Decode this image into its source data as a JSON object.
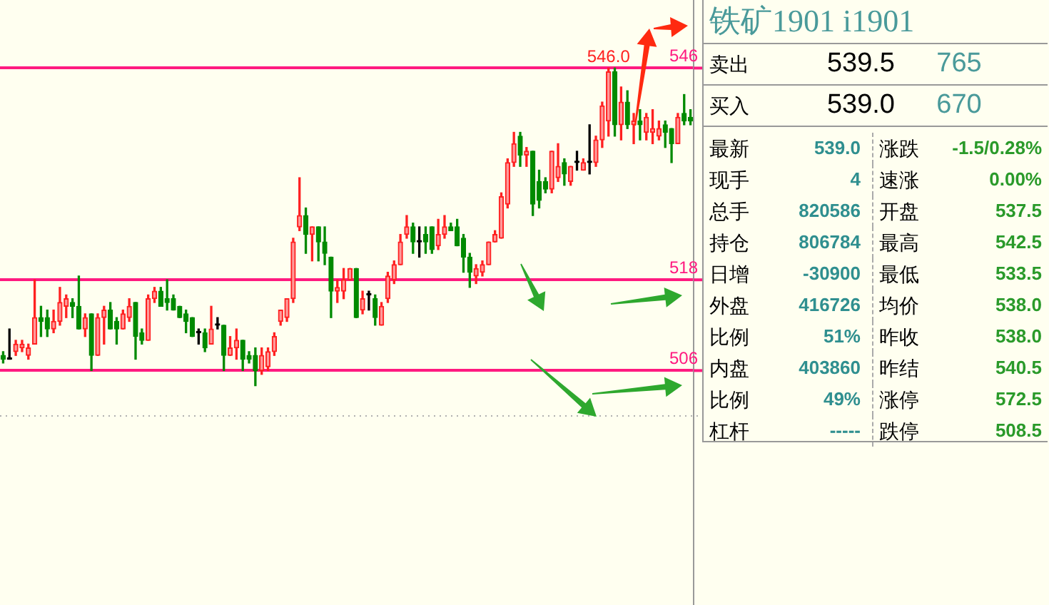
{
  "chart_data": [
    {
      "type": "candlestick",
      "categories": [
        null,
        null,
        null,
        null,
        null,
        null,
        null,
        null,
        null,
        null,
        null,
        null,
        null,
        null,
        null,
        null,
        null,
        null,
        null,
        null,
        null,
        null,
        null,
        null,
        null,
        null,
        null,
        null,
        null,
        null,
        null,
        null,
        null,
        null,
        null,
        null,
        null,
        null,
        null,
        null,
        null,
        null,
        null,
        null,
        null,
        null,
        null,
        null,
        null,
        null,
        null,
        null,
        null,
        null,
        null,
        null,
        null,
        null,
        null,
        null,
        null,
        null,
        null,
        null,
        null,
        null,
        null,
        null,
        null,
        null,
        null,
        null,
        null,
        null,
        null,
        null,
        null,
        null,
        null,
        null,
        null,
        null,
        null,
        null,
        null,
        null,
        null,
        null,
        null,
        null,
        null,
        null,
        null,
        null,
        null,
        null,
        null,
        null,
        null,
        null,
        null,
        null,
        null,
        null,
        null,
        null,
        null,
        null,
        null,
        null
      ],
      "ohlc": [
        [
          508,
          508.5,
          507,
          507.5
        ],
        [
          507.5,
          511.5,
          507.5,
          507.5
        ],
        [
          508.5,
          510,
          508,
          509.5
        ],
        [
          509,
          510,
          508.5,
          509.5
        ],
        [
          508,
          509.5,
          507.5,
          509
        ],
        [
          509.5,
          518,
          509.5,
          513
        ],
        [
          513,
          514.5,
          510.5,
          512.5
        ],
        [
          513,
          514,
          510.5,
          511.5
        ],
        [
          511.5,
          514,
          511,
          512.5
        ],
        [
          512.5,
          517,
          512,
          515
        ],
        [
          514.5,
          516,
          513,
          515.5
        ],
        [
          515,
          515.5,
          513,
          514.5
        ],
        [
          514.5,
          518.5,
          511.5,
          511.5
        ],
        [
          511.5,
          513.5,
          510.5,
          513
        ],
        [
          513.5,
          513.5,
          506,
          508
        ],
        [
          508,
          513.5,
          508,
          513
        ],
        [
          513,
          514.5,
          509.5,
          514
        ],
        [
          514,
          515,
          511.5,
          511.5
        ],
        [
          512.5,
          513,
          509.5,
          511.5
        ],
        [
          511.5,
          514,
          511.5,
          513.5
        ],
        [
          513,
          515.5,
          512.5,
          514.5
        ],
        [
          515,
          515,
          507.5,
          510.5
        ],
        [
          511,
          511.5,
          509.5,
          510
        ],
        [
          510,
          516,
          510,
          515.5
        ],
        [
          515.5,
          517,
          515,
          516.5
        ],
        [
          516.5,
          517,
          514.5,
          514.5
        ],
        [
          515.5,
          518,
          514,
          515
        ],
        [
          515.5,
          516,
          514,
          514
        ],
        [
          514.5,
          514.5,
          513,
          513
        ],
        [
          513.5,
          514,
          511,
          512.5
        ],
        [
          513,
          513,
          510.5,
          510.5
        ],
        [
          511,
          511.5,
          509.5,
          511
        ],
        [
          511,
          511.5,
          508.5,
          509
        ],
        [
          509.5,
          514.5,
          509.5,
          511.5
        ],
        [
          512,
          513,
          511.5,
          512
        ],
        [
          512,
          512,
          506,
          508
        ],
        [
          508,
          510.5,
          508,
          509
        ],
        [
          509,
          511.5,
          507.5,
          510
        ],
        [
          510,
          510,
          506,
          507.5
        ],
        [
          508,
          508.5,
          507,
          507.5
        ],
        [
          508,
          509,
          504,
          506
        ],
        [
          506,
          509,
          505.5,
          508
        ],
        [
          506.5,
          509,
          506,
          508.5
        ],
        [
          508.5,
          511,
          508,
          510.5
        ],
        [
          512.5,
          514,
          512,
          514
        ],
        [
          513,
          515.5,
          512.5,
          515.5
        ],
        [
          515.5,
          523.5,
          515,
          523
        ],
        [
          525,
          531.5,
          524.5,
          526.5
        ],
        [
          526.5,
          527.5,
          521.5,
          524
        ],
        [
          524,
          525,
          520.5,
          525
        ],
        [
          525,
          525,
          520.5,
          523
        ],
        [
          523,
          525,
          520,
          521.5
        ],
        [
          521,
          521,
          513,
          516.5
        ],
        [
          516.5,
          518,
          515,
          517
        ],
        [
          516.5,
          519.5,
          515.5,
          518
        ],
        [
          518,
          519.5,
          518,
          519.5
        ],
        [
          519.5,
          519.5,
          513,
          513
        ],
        [
          514,
          516.5,
          513.5,
          515.5
        ],
        [
          516,
          516.5,
          514,
          516
        ],
        [
          515.5,
          516,
          512,
          513
        ],
        [
          512,
          515,
          512,
          514.5
        ],
        [
          515.5,
          519,
          515,
          518.5
        ],
        [
          518,
          520.5,
          517.5,
          520
        ],
        [
          520,
          524,
          520,
          523
        ],
        [
          524,
          526.5,
          523.5,
          525
        ],
        [
          525,
          525.5,
          521.5,
          523
        ],
        [
          523,
          525,
          521,
          523
        ],
        [
          524,
          525,
          521.5,
          523
        ],
        [
          525,
          525,
          521.5,
          522
        ],
        [
          522.5,
          526,
          522,
          524
        ],
        [
          524,
          526.5,
          523.5,
          525
        ],
        [
          525,
          525.5,
          524.5,
          524.5
        ],
        [
          525,
          526,
          522.5,
          522.5
        ],
        [
          523.5,
          524,
          519,
          521
        ],
        [
          521,
          521.5,
          517,
          519
        ],
        [
          518.5,
          520,
          517.5,
          519.5
        ],
        [
          519,
          520.5,
          518.5,
          520
        ],
        [
          520,
          523,
          520,
          523
        ],
        [
          523,
          524.5,
          523,
          524
        ],
        [
          523.5,
          529.5,
          523.5,
          529
        ],
        [
          528,
          534,
          527.5,
          533.5
        ],
        [
          533.5,
          537.5,
          533,
          536
        ],
        [
          537,
          537.5,
          533,
          534.5
        ],
        [
          534.5,
          535.5,
          533,
          535
        ],
        [
          535,
          535,
          526.5,
          528
        ],
        [
          531,
          532.5,
          527.5,
          528.5
        ],
        [
          531,
          531.5,
          529.5,
          530
        ],
        [
          530,
          535,
          529.5,
          535
        ],
        [
          531.5,
          536,
          531,
          533
        ],
        [
          533.5,
          534,
          530.5,
          532
        ],
        [
          531,
          533,
          530.5,
          533
        ],
        [
          533.5,
          535,
          532.5,
          533.5
        ],
        [
          532.5,
          534,
          532.5,
          533.5
        ],
        [
          533.5,
          538.5,
          532,
          533.5
        ],
        [
          533.5,
          537,
          533,
          536.5
        ],
        [
          536.5,
          541.5,
          535.5,
          541
        ],
        [
          539,
          546,
          537,
          545.5
        ],
        [
          545.5,
          546,
          537,
          538.5
        ],
        [
          538.5,
          543.5,
          536.5,
          541.5
        ],
        [
          541.5,
          543,
          538,
          538.5
        ],
        [
          538.5,
          540,
          536,
          539
        ],
        [
          539,
          540.5,
          536.5,
          538.5
        ],
        [
          537.5,
          540,
          536.5,
          539.5
        ],
        [
          537.5,
          540.5,
          536,
          538
        ],
        [
          537,
          539,
          536.5,
          538
        ],
        [
          538.5,
          539,
          535.5,
          537.5
        ],
        [
          538,
          538,
          533.5,
          536
        ],
        [
          536,
          540,
          536,
          539.5
        ],
        [
          540,
          542.5,
          538.5,
          539
        ],
        [
          539.5,
          540.5,
          538.5,
          539
        ]
      ],
      "ylim": [
        475,
        555
      ],
      "yticks": [
        506,
        518,
        546
      ],
      "grid": "y",
      "ref_lines": [
        {
          "axis": "y",
          "value": 500,
          "color": "#b0b0b0",
          "line_style": "dotted"
        }
      ],
      "annotations": [
        {
          "text": "546.0",
          "y": 546
        }
      ]
    },
    {
      "type": "other",
      "title": "铁矿1901  i1901",
      "annotations": [
        "卖出",
        "539.5",
        "765",
        "买入",
        "539.0",
        "670",
        "最新",
        "539.0",
        "涨跌",
        "-1.5/0.28%",
        "现手",
        "4",
        "速涨",
        "0.00%",
        "总手",
        "820586",
        "开盘",
        "537.5",
        "持仓",
        "806784",
        "最高",
        "542.5",
        "日增",
        "-30900",
        "最低",
        "533.5",
        "外盘",
        "416726",
        "均价",
        "538.0",
        "比例",
        "51%",
        "昨收",
        "538.0",
        "内盘",
        "403860",
        "昨结",
        "540.5",
        "比例",
        "49%",
        "涨停",
        "572.5",
        "杠杆",
        "-----",
        "跌停",
        "508.5"
      ]
    }
  ]
}
